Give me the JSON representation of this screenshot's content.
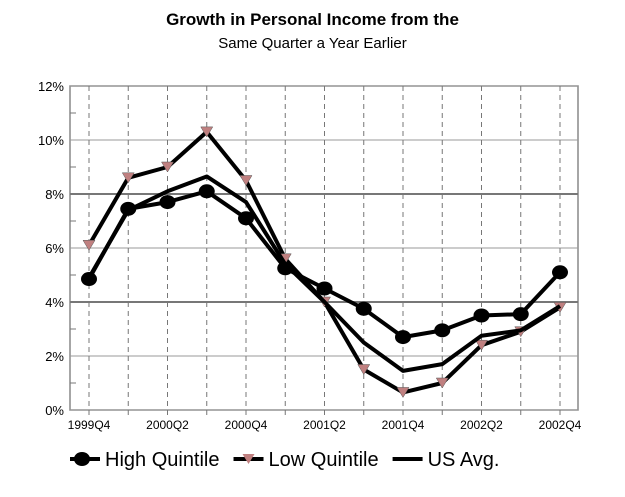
{
  "chart_data": {
    "type": "line",
    "title": "Growth in Personal Income from the",
    "subtitle": "Same Quarter a Year Earlier",
    "x": [
      "1999Q4",
      "2000Q1",
      "2000Q2",
      "2000Q3",
      "2000Q4",
      "2001Q1",
      "2001Q2",
      "2001Q3",
      "2001Q4",
      "2002Q1",
      "2002Q2",
      "2002Q3",
      "2002Q4"
    ],
    "xtick_labels": [
      "1999Q4",
      "2000Q2",
      "2000Q4",
      "2001Q2",
      "2001Q4",
      "2002Q2",
      "2002Q4"
    ],
    "ytick_labels": [
      "0%",
      "2%",
      "4%",
      "6%",
      "8%",
      "10%",
      "12%"
    ],
    "ylim": [
      0,
      12
    ],
    "grid": true,
    "legend": "bottom",
    "series": [
      {
        "name": "High Quintile",
        "marker": "circle",
        "color": "#000000",
        "values": [
          4.85,
          7.45,
          7.7,
          8.1,
          7.1,
          5.25,
          4.5,
          3.75,
          2.7,
          2.95,
          3.5,
          3.55,
          5.1
        ]
      },
      {
        "name": "Low Quintile",
        "marker": "triangle-down",
        "color": "#000000",
        "marker_color": "#c08080",
        "values": [
          6.1,
          8.6,
          9.0,
          10.3,
          8.5,
          5.6,
          4.0,
          1.5,
          0.65,
          1.0,
          2.4,
          2.9,
          3.8
        ]
      },
      {
        "name": "US Avg.",
        "marker": "none",
        "color": "#000000",
        "values": [
          4.9,
          7.4,
          8.1,
          8.65,
          7.7,
          5.4,
          4.0,
          2.5,
          1.45,
          1.7,
          2.75,
          2.95,
          3.85
        ]
      }
    ]
  }
}
